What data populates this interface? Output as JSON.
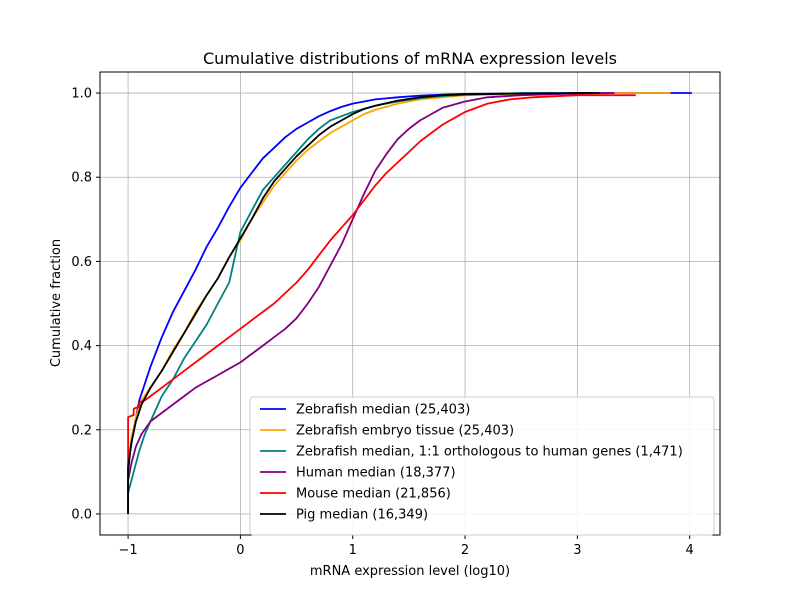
{
  "chart_data": {
    "type": "line",
    "title": "Cumulative distributions of mRNA expression levels",
    "xlabel": "mRNA expression level (log10)",
    "ylabel": "Cumulative fraction",
    "xlim": [
      -1.25,
      4.27
    ],
    "ylim": [
      -0.05,
      1.05
    ],
    "xticks": [
      -1,
      0,
      1,
      2,
      3,
      4
    ],
    "xtick_labels": [
      "−1",
      "0",
      "1",
      "2",
      "3",
      "4"
    ],
    "yticks": [
      0.0,
      0.2,
      0.4,
      0.6,
      0.8,
      1.0
    ],
    "ytick_labels": [
      "0.0",
      "0.2",
      "0.4",
      "0.6",
      "0.8",
      "1.0"
    ],
    "grid": true,
    "legend_position": "bottom-right",
    "series": [
      {
        "name": "Zebrafish median (25,403)",
        "color": "#0000ff",
        "points": [
          [
            -1,
            0
          ],
          [
            -1,
            0.1
          ],
          [
            -0.98,
            0.15
          ],
          [
            -0.95,
            0.2
          ],
          [
            -0.9,
            0.27
          ],
          [
            -0.85,
            0.31
          ],
          [
            -0.8,
            0.35
          ],
          [
            -0.7,
            0.42
          ],
          [
            -0.6,
            0.48
          ],
          [
            -0.5,
            0.53
          ],
          [
            -0.4,
            0.58
          ],
          [
            -0.3,
            0.635
          ],
          [
            -0.2,
            0.68
          ],
          [
            -0.1,
            0.73
          ],
          [
            0,
            0.775
          ],
          [
            0.1,
            0.81
          ],
          [
            0.2,
            0.845
          ],
          [
            0.3,
            0.87
          ],
          [
            0.4,
            0.895
          ],
          [
            0.5,
            0.915
          ],
          [
            0.6,
            0.93
          ],
          [
            0.7,
            0.945
          ],
          [
            0.8,
            0.957
          ],
          [
            0.9,
            0.967
          ],
          [
            1.0,
            0.975
          ],
          [
            1.2,
            0.985
          ],
          [
            1.4,
            0.99
          ],
          [
            1.6,
            0.994
          ],
          [
            1.8,
            0.996
          ],
          [
            2.0,
            0.998
          ],
          [
            2.5,
            0.999
          ],
          [
            3.0,
            1.0
          ],
          [
            3.5,
            1.0
          ],
          [
            4.02,
            1.0
          ]
        ]
      },
      {
        "name": "Zebrafish embryo tissue (25,403)",
        "color": "#ffa500",
        "points": [
          [
            -1,
            0
          ],
          [
            -1,
            0.12
          ],
          [
            -0.97,
            0.18
          ],
          [
            -0.93,
            0.23
          ],
          [
            -0.88,
            0.27
          ],
          [
            -0.8,
            0.3
          ],
          [
            -0.7,
            0.34
          ],
          [
            -0.6,
            0.39
          ],
          [
            -0.5,
            0.43
          ],
          [
            -0.4,
            0.48
          ],
          [
            -0.3,
            0.52
          ],
          [
            -0.2,
            0.56
          ],
          [
            -0.1,
            0.61
          ],
          [
            0,
            0.65
          ],
          [
            0.1,
            0.7
          ],
          [
            0.2,
            0.74
          ],
          [
            0.3,
            0.78
          ],
          [
            0.4,
            0.81
          ],
          [
            0.5,
            0.84
          ],
          [
            0.6,
            0.865
          ],
          [
            0.7,
            0.885
          ],
          [
            0.8,
            0.905
          ],
          [
            0.9,
            0.92
          ],
          [
            1.0,
            0.935
          ],
          [
            1.1,
            0.95
          ],
          [
            1.2,
            0.96
          ],
          [
            1.4,
            0.975
          ],
          [
            1.6,
            0.985
          ],
          [
            1.8,
            0.99
          ],
          [
            2.0,
            0.995
          ],
          [
            2.5,
            0.998
          ],
          [
            3.0,
            0.999
          ],
          [
            3.5,
            1.0
          ],
          [
            3.83,
            1.0
          ]
        ]
      },
      {
        "name": "Zebrafish median, 1:1 orthologous to human genes (1,471)",
        "color": "#008080",
        "points": [
          [
            -1,
            0
          ],
          [
            -1,
            0.05
          ],
          [
            -0.95,
            0.1
          ],
          [
            -0.9,
            0.15
          ],
          [
            -0.85,
            0.19
          ],
          [
            -0.8,
            0.22
          ],
          [
            -0.7,
            0.28
          ],
          [
            -0.6,
            0.32
          ],
          [
            -0.5,
            0.37
          ],
          [
            -0.4,
            0.41
          ],
          [
            -0.3,
            0.45
          ],
          [
            -0.2,
            0.5
          ],
          [
            -0.1,
            0.55
          ],
          [
            0,
            0.67
          ],
          [
            0.1,
            0.72
          ],
          [
            0.2,
            0.77
          ],
          [
            0.3,
            0.8
          ],
          [
            0.4,
            0.83
          ],
          [
            0.5,
            0.86
          ],
          [
            0.6,
            0.89
          ],
          [
            0.7,
            0.915
          ],
          [
            0.8,
            0.935
          ],
          [
            0.9,
            0.945
          ],
          [
            1.0,
            0.955
          ],
          [
            1.2,
            0.97
          ],
          [
            1.4,
            0.98
          ],
          [
            1.6,
            0.988
          ],
          [
            1.8,
            0.993
          ],
          [
            2.0,
            0.996
          ],
          [
            2.5,
            1.0
          ],
          [
            2.8,
            1.0
          ]
        ]
      },
      {
        "name": "Human median (18,377)",
        "color": "#800080",
        "points": [
          [
            -1,
            0
          ],
          [
            -1,
            0.08
          ],
          [
            -0.97,
            0.12
          ],
          [
            -0.93,
            0.16
          ],
          [
            -0.88,
            0.19
          ],
          [
            -0.8,
            0.22
          ],
          [
            -0.7,
            0.24
          ],
          [
            -0.6,
            0.26
          ],
          [
            -0.5,
            0.28
          ],
          [
            -0.4,
            0.3
          ],
          [
            -0.3,
            0.315
          ],
          [
            -0.2,
            0.33
          ],
          [
            -0.1,
            0.345
          ],
          [
            0,
            0.36
          ],
          [
            0.1,
            0.38
          ],
          [
            0.2,
            0.4
          ],
          [
            0.3,
            0.42
          ],
          [
            0.4,
            0.44
          ],
          [
            0.5,
            0.465
          ],
          [
            0.6,
            0.5
          ],
          [
            0.7,
            0.54
          ],
          [
            0.8,
            0.59
          ],
          [
            0.9,
            0.64
          ],
          [
            1.0,
            0.7
          ],
          [
            1.1,
            0.76
          ],
          [
            1.2,
            0.815
          ],
          [
            1.3,
            0.855
          ],
          [
            1.4,
            0.89
          ],
          [
            1.5,
            0.915
          ],
          [
            1.6,
            0.935
          ],
          [
            1.7,
            0.95
          ],
          [
            1.8,
            0.965
          ],
          [
            2.0,
            0.98
          ],
          [
            2.2,
            0.99
          ],
          [
            2.5,
            0.995
          ],
          [
            3.0,
            0.999
          ],
          [
            3.33,
            1.0
          ]
        ]
      },
      {
        "name": "Mouse median (21,856)",
        "color": "#ff0000",
        "points": [
          [
            -1,
            0.06
          ],
          [
            -1,
            0.23
          ],
          [
            -0.95,
            0.235
          ],
          [
            -0.95,
            0.25
          ],
          [
            -0.9,
            0.255
          ],
          [
            -0.9,
            0.265
          ],
          [
            -0.85,
            0.27
          ],
          [
            -0.8,
            0.28
          ],
          [
            -0.7,
            0.3
          ],
          [
            -0.6,
            0.32
          ],
          [
            -0.5,
            0.34
          ],
          [
            -0.4,
            0.36
          ],
          [
            -0.3,
            0.38
          ],
          [
            -0.2,
            0.4
          ],
          [
            -0.1,
            0.42
          ],
          [
            0,
            0.44
          ],
          [
            0.1,
            0.46
          ],
          [
            0.2,
            0.48
          ],
          [
            0.3,
            0.5
          ],
          [
            0.4,
            0.525
          ],
          [
            0.5,
            0.55
          ],
          [
            0.6,
            0.58
          ],
          [
            0.7,
            0.615
          ],
          [
            0.8,
            0.65
          ],
          [
            0.9,
            0.68
          ],
          [
            1.0,
            0.71
          ],
          [
            1.1,
            0.745
          ],
          [
            1.2,
            0.78
          ],
          [
            1.3,
            0.81
          ],
          [
            1.4,
            0.835
          ],
          [
            1.5,
            0.86
          ],
          [
            1.6,
            0.885
          ],
          [
            1.7,
            0.905
          ],
          [
            1.8,
            0.925
          ],
          [
            1.9,
            0.94
          ],
          [
            2.0,
            0.955
          ],
          [
            2.2,
            0.975
          ],
          [
            2.4,
            0.985
          ],
          [
            2.6,
            0.99
          ],
          [
            3.0,
            0.995
          ],
          [
            3.52,
            0.995
          ]
        ]
      },
      {
        "name": "Pig median (16,349)",
        "color": "#000000",
        "points": [
          [
            -1,
            0
          ],
          [
            -1,
            0.11
          ],
          [
            -0.97,
            0.17
          ],
          [
            -0.93,
            0.22
          ],
          [
            -0.88,
            0.26
          ],
          [
            -0.8,
            0.3
          ],
          [
            -0.7,
            0.34
          ],
          [
            -0.6,
            0.385
          ],
          [
            -0.5,
            0.43
          ],
          [
            -0.4,
            0.475
          ],
          [
            -0.3,
            0.52
          ],
          [
            -0.2,
            0.56
          ],
          [
            -0.1,
            0.61
          ],
          [
            0,
            0.655
          ],
          [
            0.1,
            0.7
          ],
          [
            0.2,
            0.75
          ],
          [
            0.3,
            0.79
          ],
          [
            0.4,
            0.82
          ],
          [
            0.5,
            0.85
          ],
          [
            0.6,
            0.875
          ],
          [
            0.7,
            0.9
          ],
          [
            0.8,
            0.92
          ],
          [
            0.9,
            0.935
          ],
          [
            1.0,
            0.95
          ],
          [
            1.1,
            0.962
          ],
          [
            1.2,
            0.97
          ],
          [
            1.4,
            0.982
          ],
          [
            1.6,
            0.99
          ],
          [
            1.8,
            0.995
          ],
          [
            2.0,
            0.997
          ],
          [
            2.5,
            0.999
          ],
          [
            3.0,
            1.0
          ],
          [
            3.2,
            1.0
          ]
        ]
      }
    ]
  }
}
